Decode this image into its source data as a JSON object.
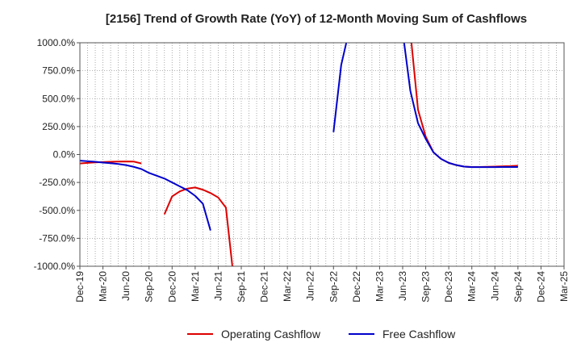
{
  "chart_data": {
    "type": "line",
    "title": "[2156]  Trend of Growth Rate (YoY) of 12-Month Moving Sum of Cashflows",
    "xlabel": "",
    "ylabel": "",
    "ylim": [
      -1000,
      1000
    ],
    "y_ticks": [
      "1000.0%",
      "750.0%",
      "500.0%",
      "250.0%",
      "0.0%",
      "-250.0%",
      "-500.0%",
      "-750.0%",
      "-1000.0%"
    ],
    "y_tick_values": [
      1000,
      750,
      500,
      250,
      0,
      -250,
      -500,
      -750,
      -1000
    ],
    "x_ticks": [
      "Dec-19",
      "Mar-20",
      "Jun-20",
      "Sep-20",
      "Dec-20",
      "Mar-21",
      "Jun-21",
      "Sep-21",
      "Dec-21",
      "Mar-22",
      "Jun-22",
      "Sep-22",
      "Dec-22",
      "Mar-23",
      "Jun-23",
      "Sep-23",
      "Dec-23",
      "Mar-24",
      "Jun-24",
      "Sep-24",
      "Dec-24",
      "Mar-25"
    ],
    "x_start": "Dec-19",
    "x_end": "Mar-25",
    "grid": true,
    "legend_position": "bottom",
    "series": [
      {
        "name": "Operating Cashflow",
        "color": "#dd0000",
        "points": [
          {
            "x": "Dec-19",
            "y": -80
          },
          {
            "x": "Jan-20",
            "y": -75
          },
          {
            "x": "Feb-20",
            "y": -70
          },
          {
            "x": "Mar-20",
            "y": -68
          },
          {
            "x": "Apr-20",
            "y": -65
          },
          {
            "x": "May-20",
            "y": -63
          },
          {
            "x": "Jun-20",
            "y": -62
          },
          {
            "x": "Jul-20",
            "y": -63
          },
          {
            "x": "Aug-20",
            "y": -80
          },
          null,
          {
            "x": "Nov-20",
            "y": -535
          },
          {
            "x": "Dec-20",
            "y": -375
          },
          {
            "x": "Jan-21",
            "y": -330
          },
          {
            "x": "Feb-21",
            "y": -305
          },
          {
            "x": "Mar-21",
            "y": -295
          },
          {
            "x": "Apr-21",
            "y": -315
          },
          {
            "x": "May-21",
            "y": -345
          },
          {
            "x": "Jun-21",
            "y": -385
          },
          {
            "x": "Jul-21",
            "y": -475
          },
          {
            "x": "Aug-21",
            "y": -1100
          },
          null,
          {
            "x": "Jul-23",
            "y": 1100
          },
          {
            "x": "Aug-23",
            "y": 400
          },
          {
            "x": "Sep-23",
            "y": 160
          },
          {
            "x": "Oct-23",
            "y": 20
          },
          {
            "x": "Nov-23",
            "y": -40
          },
          {
            "x": "Dec-23",
            "y": -75
          },
          {
            "x": "Jan-24",
            "y": -95
          },
          {
            "x": "Feb-24",
            "y": -108
          },
          {
            "x": "Mar-24",
            "y": -112
          },
          {
            "x": "Apr-24",
            "y": -112
          },
          {
            "x": "May-24",
            "y": -110
          },
          {
            "x": "Jun-24",
            "y": -108
          },
          {
            "x": "Jul-24",
            "y": -106
          },
          {
            "x": "Aug-24",
            "y": -104
          },
          {
            "x": "Sep-24",
            "y": -100
          }
        ]
      },
      {
        "name": "Free Cashflow",
        "color": "#0000cc",
        "points": [
          {
            "x": "Dec-19",
            "y": -55
          },
          {
            "x": "Jan-20",
            "y": -60
          },
          {
            "x": "Feb-20",
            "y": -65
          },
          {
            "x": "Mar-20",
            "y": -72
          },
          {
            "x": "Apr-20",
            "y": -78
          },
          {
            "x": "May-20",
            "y": -85
          },
          {
            "x": "Jun-20",
            "y": -95
          },
          {
            "x": "Jul-20",
            "y": -110
          },
          {
            "x": "Aug-20",
            "y": -130
          },
          {
            "x": "Sep-20",
            "y": -165
          },
          {
            "x": "Oct-20",
            "y": -190
          },
          {
            "x": "Nov-20",
            "y": -215
          },
          {
            "x": "Dec-20",
            "y": -250
          },
          {
            "x": "Jan-21",
            "y": -285
          },
          {
            "x": "Feb-21",
            "y": -320
          },
          {
            "x": "Mar-21",
            "y": -370
          },
          {
            "x": "Apr-21",
            "y": -440
          },
          {
            "x": "May-21",
            "y": -680
          },
          null,
          {
            "x": "Sep-22",
            "y": 200
          },
          {
            "x": "Oct-22",
            "y": 800
          },
          {
            "x": "Nov-22",
            "y": 1100
          },
          null,
          {
            "x": "Jun-23",
            "y": 1100
          },
          {
            "x": "Jul-23",
            "y": 570
          },
          {
            "x": "Aug-23",
            "y": 280
          },
          {
            "x": "Sep-23",
            "y": 140
          },
          {
            "x": "Oct-23",
            "y": 20
          },
          {
            "x": "Nov-23",
            "y": -40
          },
          {
            "x": "Dec-23",
            "y": -75
          },
          {
            "x": "Jan-24",
            "y": -95
          },
          {
            "x": "Feb-24",
            "y": -108
          },
          {
            "x": "Mar-24",
            "y": -113
          },
          {
            "x": "Apr-24",
            "y": -113
          },
          {
            "x": "May-24",
            "y": -113
          },
          {
            "x": "Jun-24",
            "y": -113
          },
          {
            "x": "Jul-24",
            "y": -112
          },
          {
            "x": "Aug-24",
            "y": -112
          },
          {
            "x": "Sep-24",
            "y": -112
          }
        ]
      }
    ]
  }
}
